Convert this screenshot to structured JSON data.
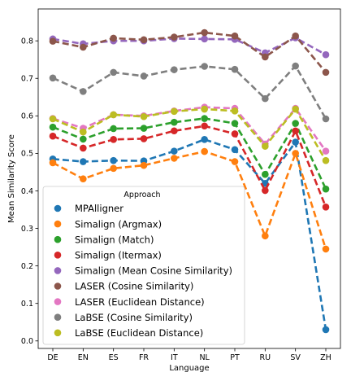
{
  "chart_data": {
    "type": "line",
    "xlabel": "Language",
    "ylabel": "Mean Similarity Score",
    "categories": [
      "DE",
      "EN",
      "ES",
      "FR",
      "IT",
      "NL",
      "PT",
      "RU",
      "SV",
      "ZH"
    ],
    "ylim": [
      -0.02,
      0.885
    ],
    "yticks": [
      "0.0",
      "0.1",
      "0.2",
      "0.3",
      "0.4",
      "0.5",
      "0.6",
      "0.7",
      "0.8"
    ],
    "legend": {
      "title": "Approach",
      "position": "lower-left"
    },
    "line_style": "dashed with circle markers",
    "series": [
      {
        "name": "MPAlligner",
        "color": "#1f77b4",
        "values": [
          0.485,
          0.478,
          0.481,
          0.48,
          0.506,
          0.537,
          0.51,
          0.42,
          0.53,
          0.03
        ]
      },
      {
        "name": "Simalign (Argmax)",
        "color": "#ff7f0e",
        "values": [
          0.475,
          0.432,
          0.46,
          0.468,
          0.487,
          0.505,
          0.478,
          0.28,
          0.5,
          0.245
        ]
      },
      {
        "name": "Simalign (Match)",
        "color": "#2ca02c",
        "values": [
          0.57,
          0.538,
          0.566,
          0.567,
          0.583,
          0.593,
          0.58,
          0.444,
          0.58,
          0.405
        ]
      },
      {
        "name": "Simalign (Itermax)",
        "color": "#d62728",
        "values": [
          0.546,
          0.514,
          0.537,
          0.539,
          0.56,
          0.573,
          0.552,
          0.401,
          0.56,
          0.357
        ]
      },
      {
        "name": "Simalign (Mean Cosine Similarity)",
        "color": "#9467bd",
        "values": [
          0.805,
          0.792,
          0.8,
          0.8,
          0.806,
          0.805,
          0.804,
          0.768,
          0.808,
          0.763
        ]
      },
      {
        "name": "LASER (Cosine Similarity)",
        "color": "#8c564b",
        "values": [
          0.799,
          0.783,
          0.807,
          0.803,
          0.81,
          0.822,
          0.813,
          0.757,
          0.813,
          0.716
        ]
      },
      {
        "name": "LASER (Euclidean Distance)",
        "color": "#e377c2",
        "values": [
          0.593,
          0.567,
          0.603,
          0.6,
          0.613,
          0.623,
          0.62,
          0.525,
          0.62,
          0.506
        ]
      },
      {
        "name": "LaBSE (Cosine Similarity)",
        "color": "#7f7f7f",
        "values": [
          0.701,
          0.665,
          0.716,
          0.706,
          0.723,
          0.732,
          0.724,
          0.646,
          0.733,
          0.592
        ]
      },
      {
        "name": "LaBSE (Euclidean Distance)",
        "color": "#bcbd22",
        "values": [
          0.592,
          0.557,
          0.603,
          0.598,
          0.612,
          0.618,
          0.613,
          0.519,
          0.618,
          0.481
        ]
      }
    ]
  }
}
